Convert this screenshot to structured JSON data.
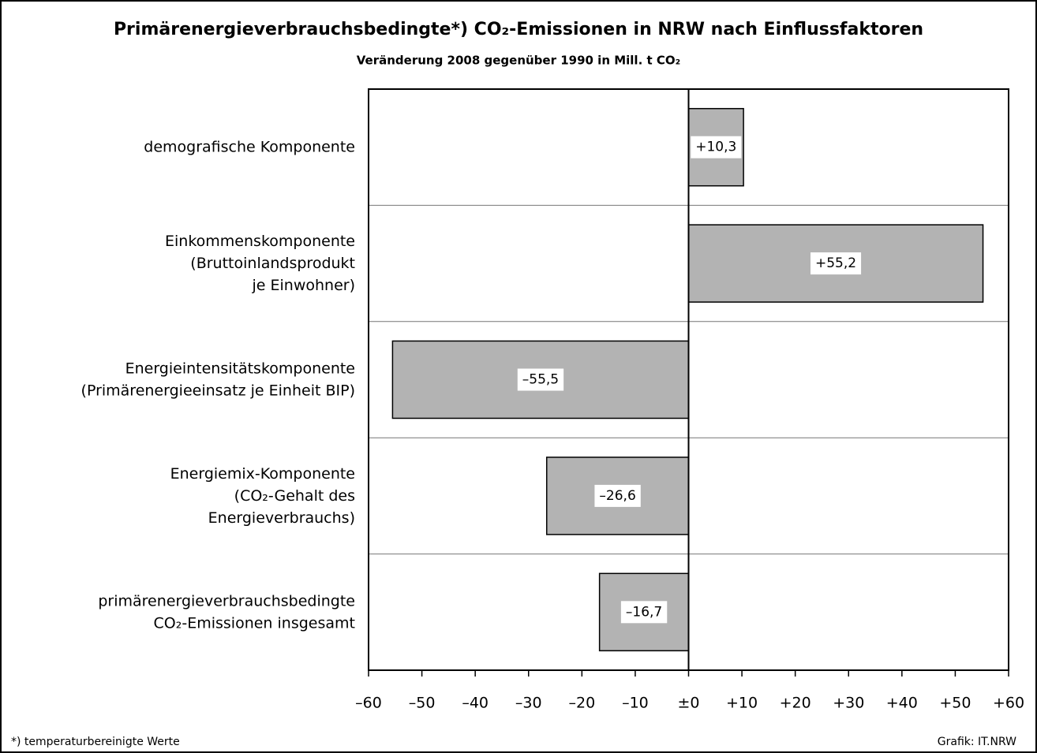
{
  "chart_data": {
    "type": "hbar",
    "title": "Primärenergieverbrauchsbedingte*) CO₂-Emissionen in NRW nach Einflussfaktoren",
    "subtitle": "Veränderung 2008 gegenüber 1990 in Mill. t CO₂",
    "categories": [
      "demografische Komponente",
      "Einkommenskomponente\n(Bruttoinlandsprodukt\nje Einwohner)",
      "Energieintensitätskomponente\n(Primärenergieeinsatz je Einheit BIP)",
      "Energiemix-Komponente\n(CO₂-Gehalt des\nEnergieverbrauchs)",
      "primärenergieverbrauchsbedingte\nCO₂-Emissionen insgesamt"
    ],
    "values": [
      10.3,
      55.2,
      -55.5,
      -26.6,
      -16.7
    ],
    "value_labels": [
      "+10,3",
      "+55,2",
      "–55,5",
      "–26,6",
      "–16,7"
    ],
    "color": "#b3b3b3",
    "xlim": [
      -60,
      60
    ],
    "xticks": [
      {
        "value": -60,
        "label": "–60"
      },
      {
        "value": -50,
        "label": "–50"
      },
      {
        "value": -40,
        "label": "–40"
      },
      {
        "value": -30,
        "label": "–30"
      },
      {
        "value": -20,
        "label": "–20"
      },
      {
        "value": -10,
        "label": "–10"
      },
      {
        "value": 0,
        "label": "±0"
      },
      {
        "value": 10,
        "label": "+10"
      },
      {
        "value": 20,
        "label": "+20"
      },
      {
        "value": 30,
        "label": "+30"
      },
      {
        "value": 40,
        "label": "+40"
      },
      {
        "value": 50,
        "label": "+50"
      },
      {
        "value": 60,
        "label": "+60"
      }
    ],
    "footnote": "*) temperaturbereinigte Werte",
    "source": "Grafik: IT.NRW"
  }
}
